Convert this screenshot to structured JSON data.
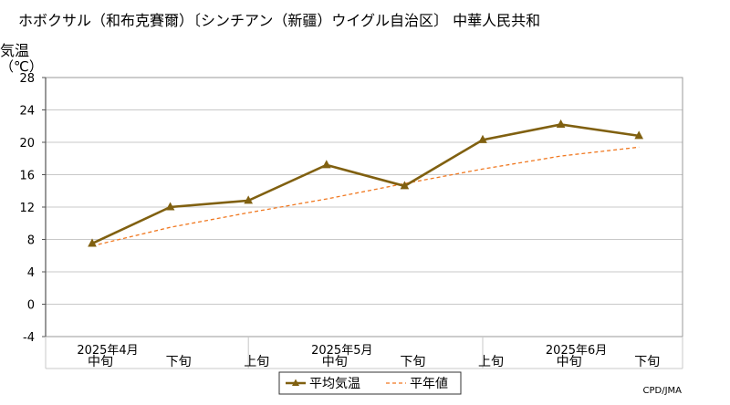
{
  "chart_data": {
    "type": "line",
    "title": "ホボクサル（和布克賽爾）〔シンチアン（新疆）ウイグル自治区〕 中華人民共和",
    "ylabel": "気温",
    "yunit": "（℃）",
    "ylim": [
      -4,
      28
    ],
    "yticks": [
      28,
      24,
      20,
      16,
      12,
      8,
      4,
      0,
      -4
    ],
    "grid": true,
    "legend_position": "bottom-center",
    "categories": [
      "中旬",
      "下旬",
      "上旬",
      "中旬",
      "下旬",
      "上旬",
      "中旬",
      "下旬"
    ],
    "month_labels": [
      {
        "label": "2025年4月",
        "category_index": 0
      },
      {
        "label": "2025年5月",
        "category_index": 3
      },
      {
        "label": "2025年6月",
        "category_index": 6
      }
    ],
    "series": [
      {
        "name": "平均気温",
        "color": "#806010",
        "style": "solid",
        "marker": "triangle",
        "values": [
          7.5,
          12.0,
          12.8,
          17.2,
          14.6,
          20.3,
          22.2,
          20.8
        ]
      },
      {
        "name": "平年値",
        "color": "#f07820",
        "style": "dashed",
        "values": [
          7.2,
          9.5,
          11.3,
          13.0,
          14.9,
          16.7,
          18.3,
          19.4
        ]
      }
    ],
    "credit": "CPD/JMA"
  }
}
